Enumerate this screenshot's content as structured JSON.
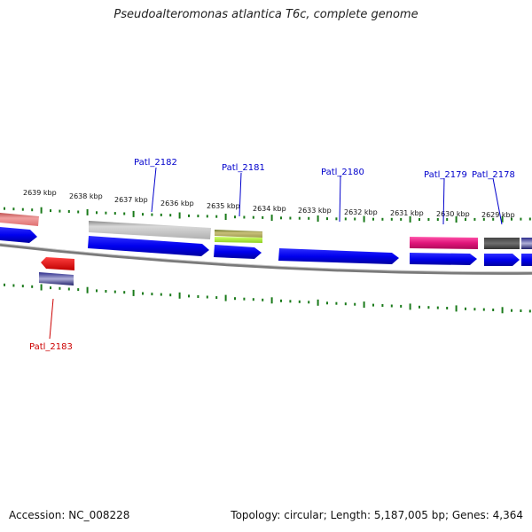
{
  "title": "Pseudoalteromonas atlantica T6c, complete genome",
  "footer": {
    "accession_label": "Accession:",
    "accession": "NC_008228",
    "topology_label": "Topology:",
    "topology": "circular",
    "length_label": "Length:",
    "length": "5,187,005 bp",
    "genes_label": "Genes:",
    "genes": "4,364"
  },
  "ruler": {
    "unit": "kbp",
    "labels": [
      "2639 kbp",
      "2638 kbp",
      "2637 kbp",
      "2636 kbp",
      "2635 kbp",
      "2634 kbp",
      "2633 kbp",
      "2632 kbp",
      "2631 kbp",
      "2630 kbp",
      "2629 kbp"
    ]
  },
  "genes": [
    {
      "name": "Patl_2182",
      "strand": "+",
      "color": "#b8b8b8"
    },
    {
      "name": "Patl_2181",
      "strand": "+",
      "color": "#9bbd3c"
    },
    {
      "name": "Patl_2180",
      "strand": "+",
      "color": "#0000ee"
    },
    {
      "name": "Patl_2179",
      "strand": "+",
      "color": "#e0157a"
    },
    {
      "name": "Patl_2178",
      "strand": "+",
      "color": "#5e5e5e"
    },
    {
      "name": "Patl_2183",
      "strand": "-",
      "color": "#e81010"
    }
  ],
  "colors": {
    "label_plus": "#0000cc",
    "label_minus": "#cc0000",
    "tick": "#1a7a1a",
    "backbone": "#888888",
    "feature_blue": "#0000ee"
  }
}
